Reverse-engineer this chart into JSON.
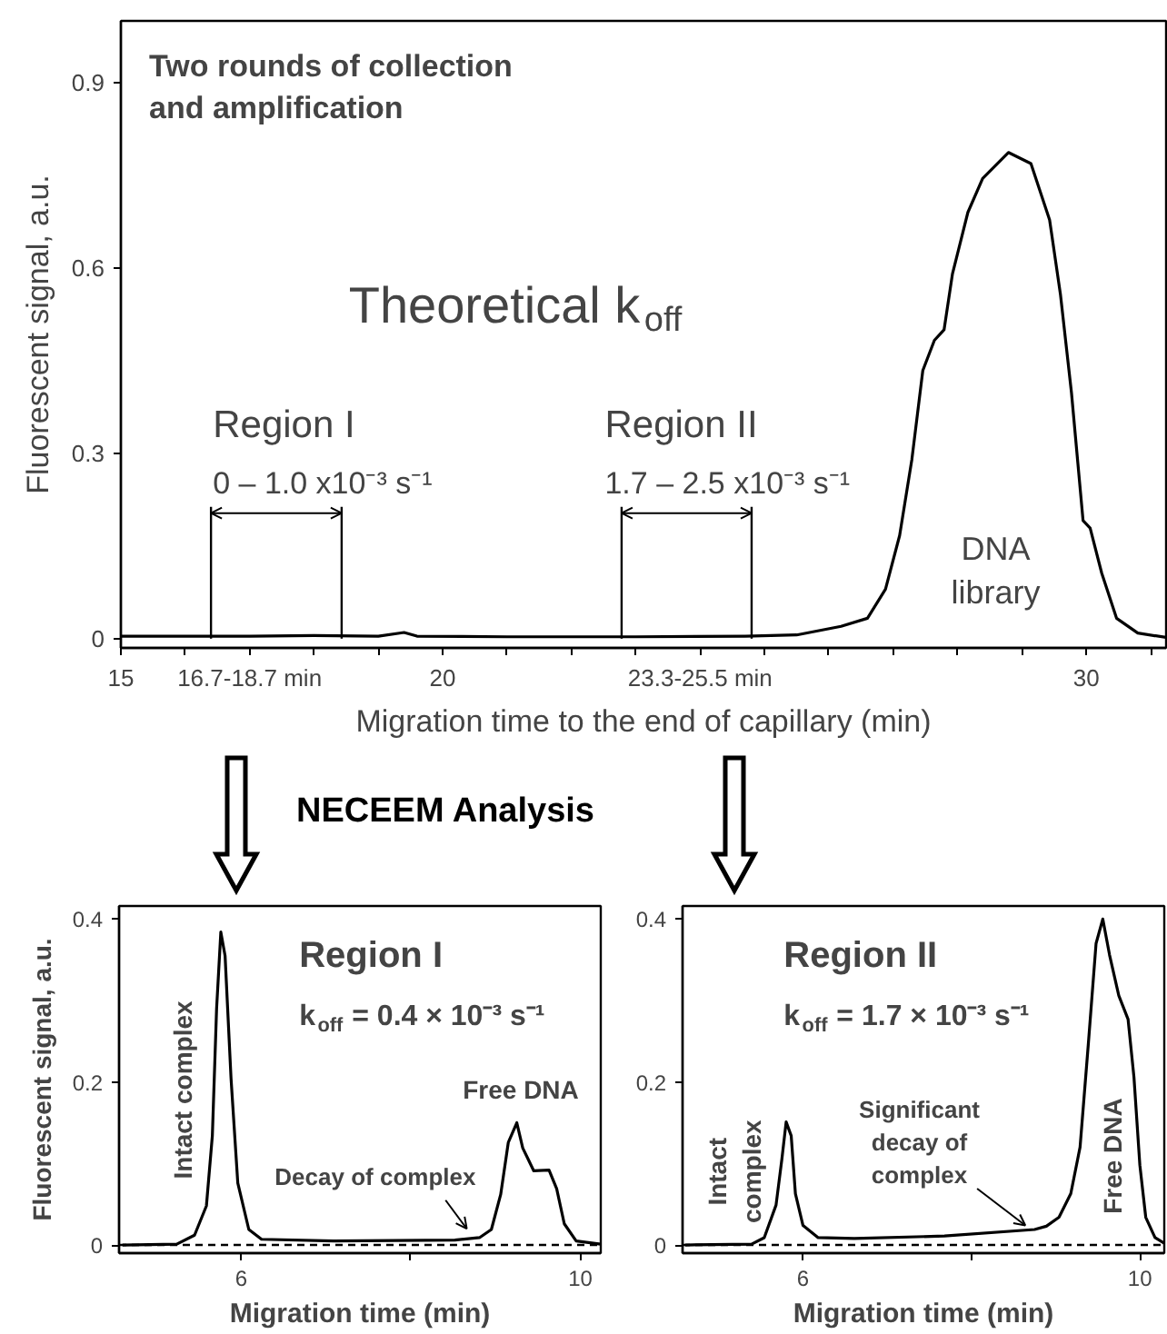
{
  "chart_data": [
    {
      "type": "line",
      "xlabel": "Migration time to the end of capillary (min)",
      "ylabel": "Fluorescent signal, a.u.",
      "x": [
        15.0,
        16.0,
        17.0,
        18.0,
        19.0,
        19.4,
        19.6,
        21.0,
        23.0,
        24.7,
        25.5,
        26.19,
        26.6,
        26.88,
        27.1,
        27.29,
        27.46,
        27.64,
        27.79,
        27.92,
        28.16,
        28.39,
        28.79,
        29.14,
        29.43,
        29.6,
        29.77,
        29.95,
        30.06,
        30.24,
        30.47,
        30.8,
        31.24
      ],
      "series": [
        {
          "color": "#000000",
          "values": [
            0.004,
            0.004,
            0.004,
            0.005,
            0.004,
            0.01,
            0.004,
            0.003,
            0.003,
            0.004,
            0.006,
            0.02,
            0.033,
            0.08,
            0.167,
            0.29,
            0.434,
            0.483,
            0.5,
            0.59,
            0.69,
            0.745,
            0.787,
            0.769,
            0.678,
            0.556,
            0.398,
            0.191,
            0.179,
            0.106,
            0.033,
            0.009,
            0.002
          ]
        }
      ],
      "xlim": [
        15,
        31.24
      ],
      "ylim": [
        -0.015,
        1.0
      ],
      "xticks": [
        15,
        {
          "value": 16,
          "label": null
        },
        {
          "value": 17,
          "label": "16.7-18.7 min"
        },
        {
          "value": 18,
          "label": null
        },
        {
          "value": 19,
          "label": null
        },
        20,
        {
          "value": 21,
          "label": null
        },
        {
          "value": 22,
          "label": null
        },
        {
          "value": 23,
          "label": null
        },
        {
          "value": 24,
          "label": "23.3-25.5 min"
        },
        {
          "value": 25,
          "label": null
        },
        {
          "value": 26,
          "label": null
        },
        {
          "value": 27,
          "label": null
        },
        {
          "value": 28,
          "label": null
        },
        {
          "value": 29,
          "label": null
        },
        30,
        {
          "value": 31,
          "label": null
        }
      ],
      "yticks": [
        0,
        0.3,
        0.6,
        0.9
      ],
      "ref_lines": [
        {
          "axis": "x",
          "value": 16.4
        },
        {
          "axis": "x",
          "value": 18.43
        },
        {
          "axis": "x",
          "value": 22.78
        },
        {
          "axis": "x",
          "value": 24.8
        }
      ],
      "annotations": [
        "Two rounds of collection\nand amplification",
        "Theoretical k$_{off}$",
        "Region I",
        "0 – 1.0 x10⁻³ s⁻¹",
        "Region II",
        "1.7 – 2.5 x10⁻³ s⁻¹",
        "DNA\nlibrary",
        "NECEEM Analysis"
      ]
    },
    {
      "type": "line",
      "xlabel": "Migration time (min)",
      "ylabel": "Fluorescent signal, a.u.",
      "x": [
        4.6,
        5.24,
        5.45,
        5.59,
        5.66,
        5.71,
        5.76,
        5.81,
        5.88,
        5.96,
        6.09,
        6.24,
        7.09,
        8.52,
        8.81,
        8.95,
        9.06,
        9.15,
        9.25,
        9.32,
        9.45,
        9.63,
        9.72,
        9.81,
        9.95,
        10.24
      ],
      "series": [
        {
          "color": "#000000",
          "values": [
            0.0,
            0.001,
            0.012,
            0.048,
            0.134,
            0.29,
            0.384,
            0.355,
            0.205,
            0.076,
            0.019,
            0.007,
            0.005,
            0.006,
            0.009,
            0.019,
            0.062,
            0.126,
            0.15,
            0.119,
            0.091,
            0.092,
            0.069,
            0.026,
            0.005,
            0.001
          ]
        }
      ],
      "xlim": [
        4.56,
        10.24
      ],
      "ylim": [
        -0.01,
        0.416
      ],
      "xticks": [
        6,
        {
          "value": 8,
          "label": null
        },
        10
      ],
      "yticks": [
        0,
        0.2,
        0.4
      ],
      "ref_lines": [
        {
          "axis": "y",
          "value": 0,
          "line_style": "dashed"
        }
      ],
      "annotations": [
        "Region I",
        "k$_{off}$ = 0.4 × 10⁻³ s⁻¹",
        "Intact complex",
        "Free DNA",
        {
          "text": "Decay of complex",
          "x": 8.66,
          "y": 0.02
        }
      ]
    },
    {
      "type": "line",
      "xlabel": "Migration time (min)",
      "x": [
        4.6,
        5.39,
        5.54,
        5.68,
        5.75,
        5.8,
        5.86,
        5.91,
        6.0,
        6.18,
        6.61,
        7.68,
        8.75,
        8.89,
        9.04,
        9.18,
        9.29,
        9.39,
        9.48,
        9.56,
        9.64,
        9.75,
        9.86,
        9.93,
        10.0,
        10.07,
        10.18,
        10.29
      ],
      "series": [
        {
          "color": "#000000",
          "values": [
            0.0,
            0.001,
            0.009,
            0.049,
            0.106,
            0.151,
            0.134,
            0.063,
            0.024,
            0.009,
            0.008,
            0.011,
            0.019,
            0.023,
            0.034,
            0.063,
            0.12,
            0.249,
            0.37,
            0.4,
            0.356,
            0.306,
            0.277,
            0.206,
            0.098,
            0.034,
            0.009,
            0.002
          ]
        }
      ],
      "xlim": [
        4.57,
        10.29
      ],
      "ylim": [
        -0.01,
        0.416
      ],
      "xticks": [
        6,
        {
          "value": 8,
          "label": null
        },
        10
      ],
      "yticks": [
        0,
        0.2,
        0.4
      ],
      "ref_lines": [
        {
          "axis": "y",
          "value": 0,
          "line_style": "dashed"
        }
      ],
      "annotations": [
        "Region II",
        "k$_{off}$ = 1.7 × 10⁻³ s⁻¹",
        "Intact\ncomplex",
        "Free DNA",
        {
          "text": "Significant\ndecay of\ncomplex",
          "x": 8.64,
          "y": 0.024
        }
      ]
    }
  ]
}
